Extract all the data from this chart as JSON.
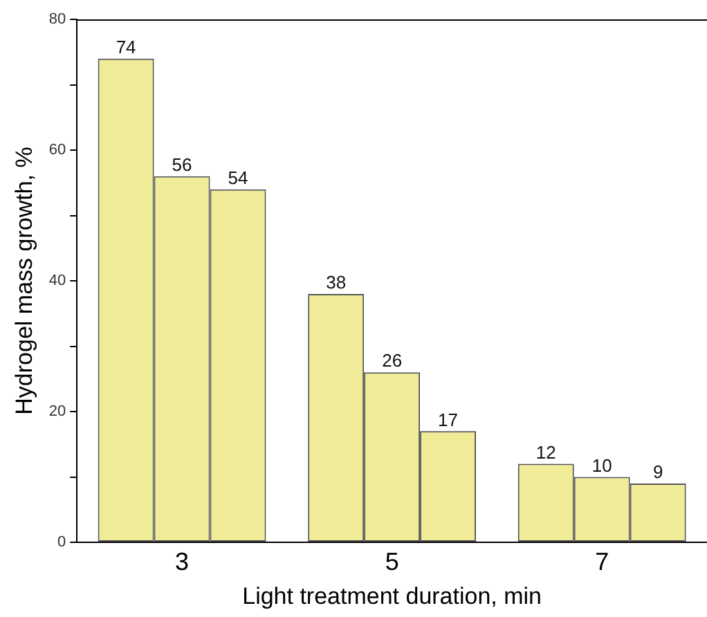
{
  "chart_data": {
    "type": "bar",
    "xlabel": "Light treatment duration, min",
    "ylabel": "Hydrogel mass growth, %",
    "categories": [
      "3",
      "5",
      "7"
    ],
    "series": [
      {
        "color": "#f0eb96",
        "values": [
          74,
          38,
          12
        ]
      },
      {
        "color": "#f0eb96",
        "values": [
          56,
          26,
          10
        ]
      },
      {
        "color": "#f0eb96",
        "values": [
          54,
          17,
          9
        ]
      }
    ],
    "ylim": [
      0,
      80
    ],
    "yticks": [
      0,
      {
        "value": 10,
        "label": null
      },
      20,
      {
        "value": 30,
        "label": null
      },
      40,
      {
        "value": 50,
        "label": null
      },
      60,
      {
        "value": 70,
        "label": null
      },
      80
    ],
    "grid": false,
    "legend": false,
    "data_labels": true
  }
}
